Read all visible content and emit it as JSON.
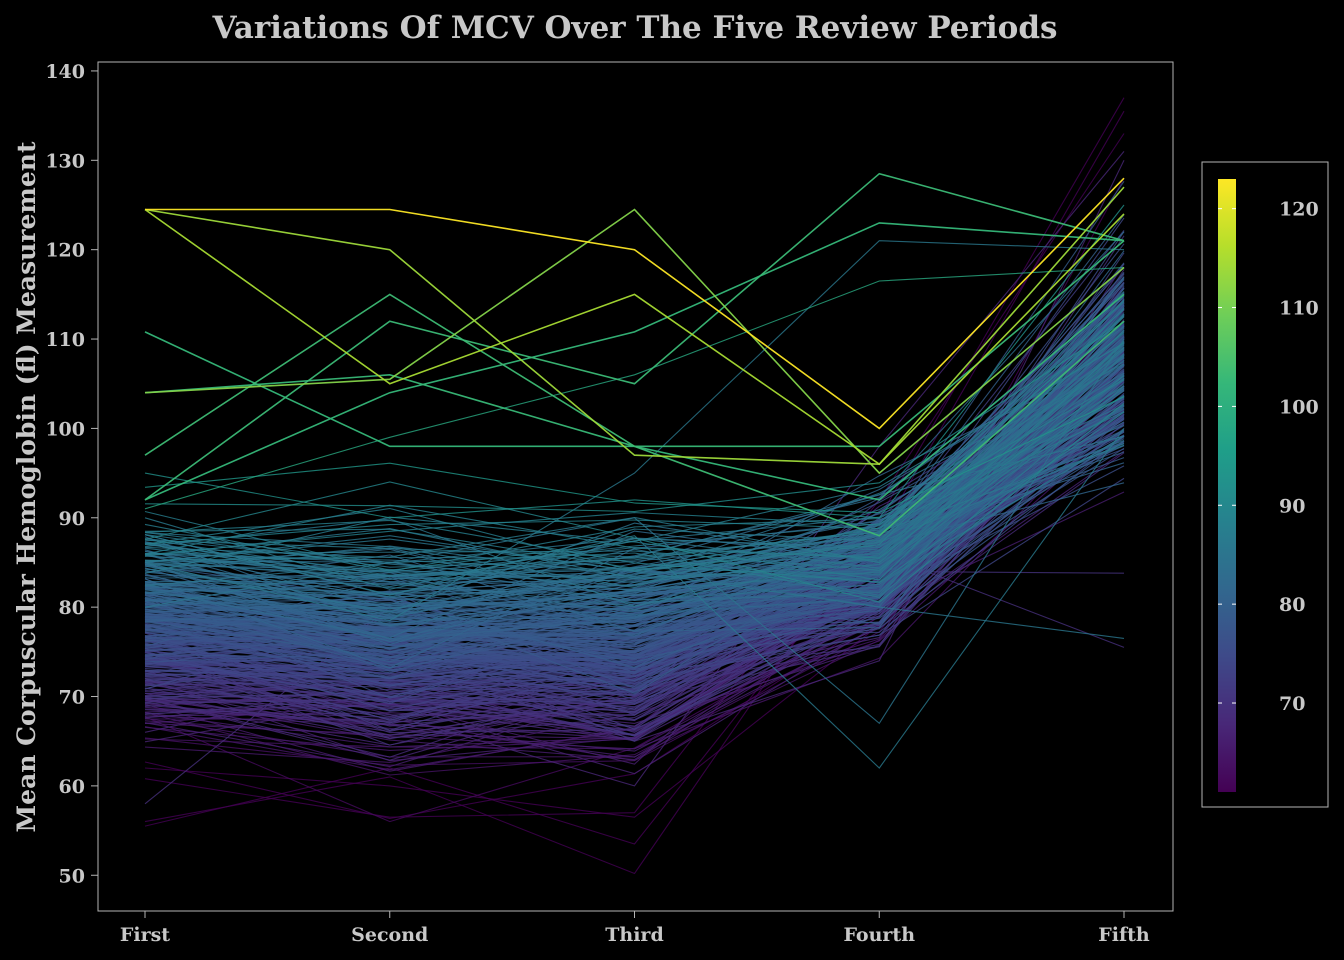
{
  "chart_data": {
    "type": "line",
    "title": "Variations Of MCV Over The Five Review Periods",
    "xlabel": "",
    "ylabel": "Mean Corpuscular Hemoglobin (fl) Measurement",
    "categories": [
      "First",
      "Second",
      "Third",
      "Fourth",
      "Fifth"
    ],
    "ylim": [
      46,
      141
    ],
    "yticks": [
      50,
      60,
      70,
      80,
      90,
      100,
      110,
      120,
      130,
      140
    ],
    "grid": false,
    "legend": {
      "type": "colorbar",
      "placement": "right",
      "range": [
        61,
        123
      ],
      "ticks": [
        70,
        80,
        90,
        100,
        110,
        120
      ]
    },
    "colormap": [
      "#440154",
      "#482878",
      "#3e4a89",
      "#31688e",
      "#26828e",
      "#1f9e89",
      "#35b779",
      "#6ece58",
      "#b5de2b",
      "#fde725"
    ],
    "series_count": 420,
    "series": [
      {
        "values": [
          124.5,
          124.5,
          120.0,
          100.0,
          128.0
        ]
      },
      {
        "values": [
          124.5,
          120.0,
          97.0,
          96.0,
          127.0
        ]
      },
      {
        "values": [
          124.5,
          105.0,
          115.0,
          96.0,
          124.0
        ]
      },
      {
        "values": [
          104.0,
          105.5,
          124.5,
          95.0,
          118.0
        ]
      },
      {
        "values": [
          104.0,
          106.0,
          98.0,
          98.0,
          121.0
        ]
      },
      {
        "values": [
          110.8,
          98.0,
          98.0,
          92.0,
          115.0
        ]
      },
      {
        "values": [
          97.0,
          115.0,
          98.0,
          88.0,
          112.0
        ]
      },
      {
        "values": [
          92.0,
          112.0,
          105.0,
          128.5,
          121.0
        ]
      },
      {
        "values": [
          92.0,
          104.0,
          110.8,
          123.0,
          121.0
        ]
      },
      {
        "values": [
          91.0,
          99.0,
          106.0,
          116.5,
          118.0
        ]
      },
      {
        "values": [
          85.0,
          78.5,
          95.0,
          121.0,
          120.0
        ]
      },
      {
        "values": [
          80.0,
          85.0,
          90.0,
          67.0,
          110.0
        ]
      },
      {
        "values": [
          90.0,
          82.0,
          88.0,
          62.0,
          100.0
        ]
      },
      {
        "values": [
          58.0,
          80.0,
          70.0,
          86.0,
          75.5
        ]
      },
      {
        "values": [
          85.0,
          88.0,
          84.0,
          80.0,
          76.5
        ]
      },
      {
        "values": [
          68.0,
          70.0,
          72.0,
          84.0,
          83.8
        ]
      },
      {
        "values": [
          56.0,
          61.0,
          50.2,
          90.0,
          137.0
        ]
      },
      {
        "values": [
          55.5,
          62.0,
          53.5,
          88.0,
          135.5
        ]
      },
      {
        "values": [
          60.8,
          56.5,
          57.0,
          92.0,
          133.0
        ]
      },
      {
        "values": [
          75.0,
          68.0,
          60.0,
          98.0,
          131.0
        ]
      },
      {
        "values": [
          62.0,
          60.0,
          56.5,
          78.0,
          128.0
        ]
      },
      {
        "values": [
          66.0,
          72.0,
          65.0,
          74.0,
          130.0
        ]
      },
      {
        "values": [
          95.0,
          90.0,
          92.0,
          90.0,
          125.0
        ]
      }
    ]
  }
}
